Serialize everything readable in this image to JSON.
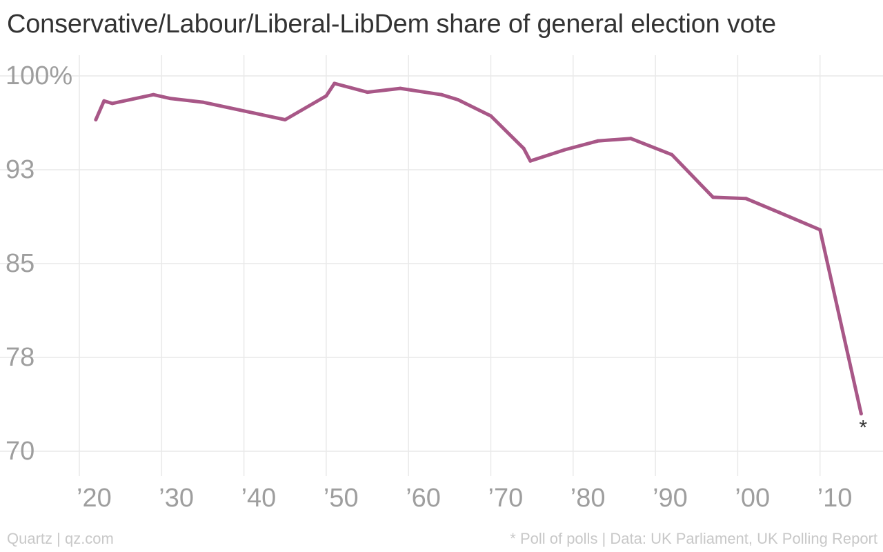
{
  "chart_data": {
    "type": "line",
    "title": "Conservative/Labour/Liberal-LibDem share of general election vote",
    "xlabel": "",
    "ylabel": "",
    "xlim": [
      1920,
      2015
    ],
    "ylim": [
      70,
      100
    ],
    "y_ticks": [
      {
        "value": 100,
        "label": "100%"
      },
      {
        "value": 92.5,
        "label": "93"
      },
      {
        "value": 85,
        "label": "85"
      },
      {
        "value": 77.5,
        "label": "78"
      },
      {
        "value": 70,
        "label": "70"
      }
    ],
    "x_ticks": [
      {
        "value": 1920,
        "label": "’20"
      },
      {
        "value": 1930,
        "label": "’30"
      },
      {
        "value": 1940,
        "label": "’40"
      },
      {
        "value": 1950,
        "label": "’50"
      },
      {
        "value": 1960,
        "label": "’60"
      },
      {
        "value": 1970,
        "label": "’70"
      },
      {
        "value": 1980,
        "label": "’80"
      },
      {
        "value": 1990,
        "label": "’90"
      },
      {
        "value": 2000,
        "label": "’00"
      },
      {
        "value": 2010,
        "label": "’10"
      }
    ],
    "grid": true,
    "line_color": "#a85787",
    "series": [
      {
        "x": [
          1922,
          1923,
          1924,
          1929,
          1931,
          1935,
          1945,
          1950,
          1951,
          1955,
          1959,
          1964,
          1966,
          1970,
          1974,
          1974.8,
          1979,
          1983,
          1987,
          1992,
          1997,
          2001,
          2005,
          2010,
          2015
        ],
        "y": [
          96.5,
          98.0,
          97.8,
          98.5,
          98.2,
          97.9,
          96.5,
          98.4,
          99.4,
          98.7,
          99.0,
          98.5,
          98.1,
          96.8,
          94.2,
          93.2,
          94.1,
          94.8,
          95.0,
          93.7,
          90.3,
          90.2,
          89.1,
          87.7,
          73.0
        ]
      }
    ],
    "annotations": [
      {
        "text": "*",
        "x": 2015,
        "y": 73
      }
    ]
  },
  "footer": {
    "left": "Quartz | qz.com",
    "right": "* Poll of polls | Data: UK Parliament, UK Polling Report"
  }
}
